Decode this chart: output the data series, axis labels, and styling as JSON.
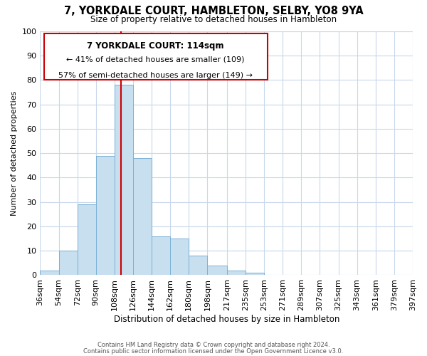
{
  "title": "7, YORKDALE COURT, HAMBLETON, SELBY, YO8 9YA",
  "subtitle": "Size of property relative to detached houses in Hambleton",
  "xlabel": "Distribution of detached houses by size in Hambleton",
  "ylabel": "Number of detached properties",
  "bar_color": "#c8dff0",
  "bar_edge_color": "#7ab0d4",
  "background_color": "#ffffff",
  "grid_color": "#c8d8ea",
  "annotation_box_color": "#ffffff",
  "annotation_box_edge": "#cc0000",
  "vline_color": "#cc0000",
  "bin_edges": [
    36,
    54,
    72,
    90,
    108,
    126,
    144,
    162,
    180,
    198,
    217,
    235,
    253,
    271,
    289,
    307,
    325,
    343,
    361,
    379,
    397
  ],
  "bin_counts": [
    2,
    10,
    29,
    49,
    78,
    48,
    16,
    15,
    8,
    4,
    2,
    1,
    0,
    0,
    0,
    0,
    0,
    0,
    0,
    0
  ],
  "vline_x": 114,
  "annotation_title": "7 YORKDALE COURT: 114sqm",
  "annotation_line1": "← 41% of detached houses are smaller (109)",
  "annotation_line2": "57% of semi-detached houses are larger (149) →",
  "tick_labels": [
    "36sqm",
    "54sqm",
    "72sqm",
    "90sqm",
    "108sqm",
    "126sqm",
    "144sqm",
    "162sqm",
    "180sqm",
    "198sqm",
    "217sqm",
    "235sqm",
    "253sqm",
    "271sqm",
    "289sqm",
    "307sqm",
    "325sqm",
    "343sqm",
    "361sqm",
    "379sqm",
    "397sqm"
  ],
  "ylim": [
    0,
    100
  ],
  "yticks": [
    0,
    10,
    20,
    30,
    40,
    50,
    60,
    70,
    80,
    90,
    100
  ],
  "footnote1": "Contains HM Land Registry data © Crown copyright and database right 2024.",
  "footnote2": "Contains public sector information licensed under the Open Government Licence v3.0."
}
